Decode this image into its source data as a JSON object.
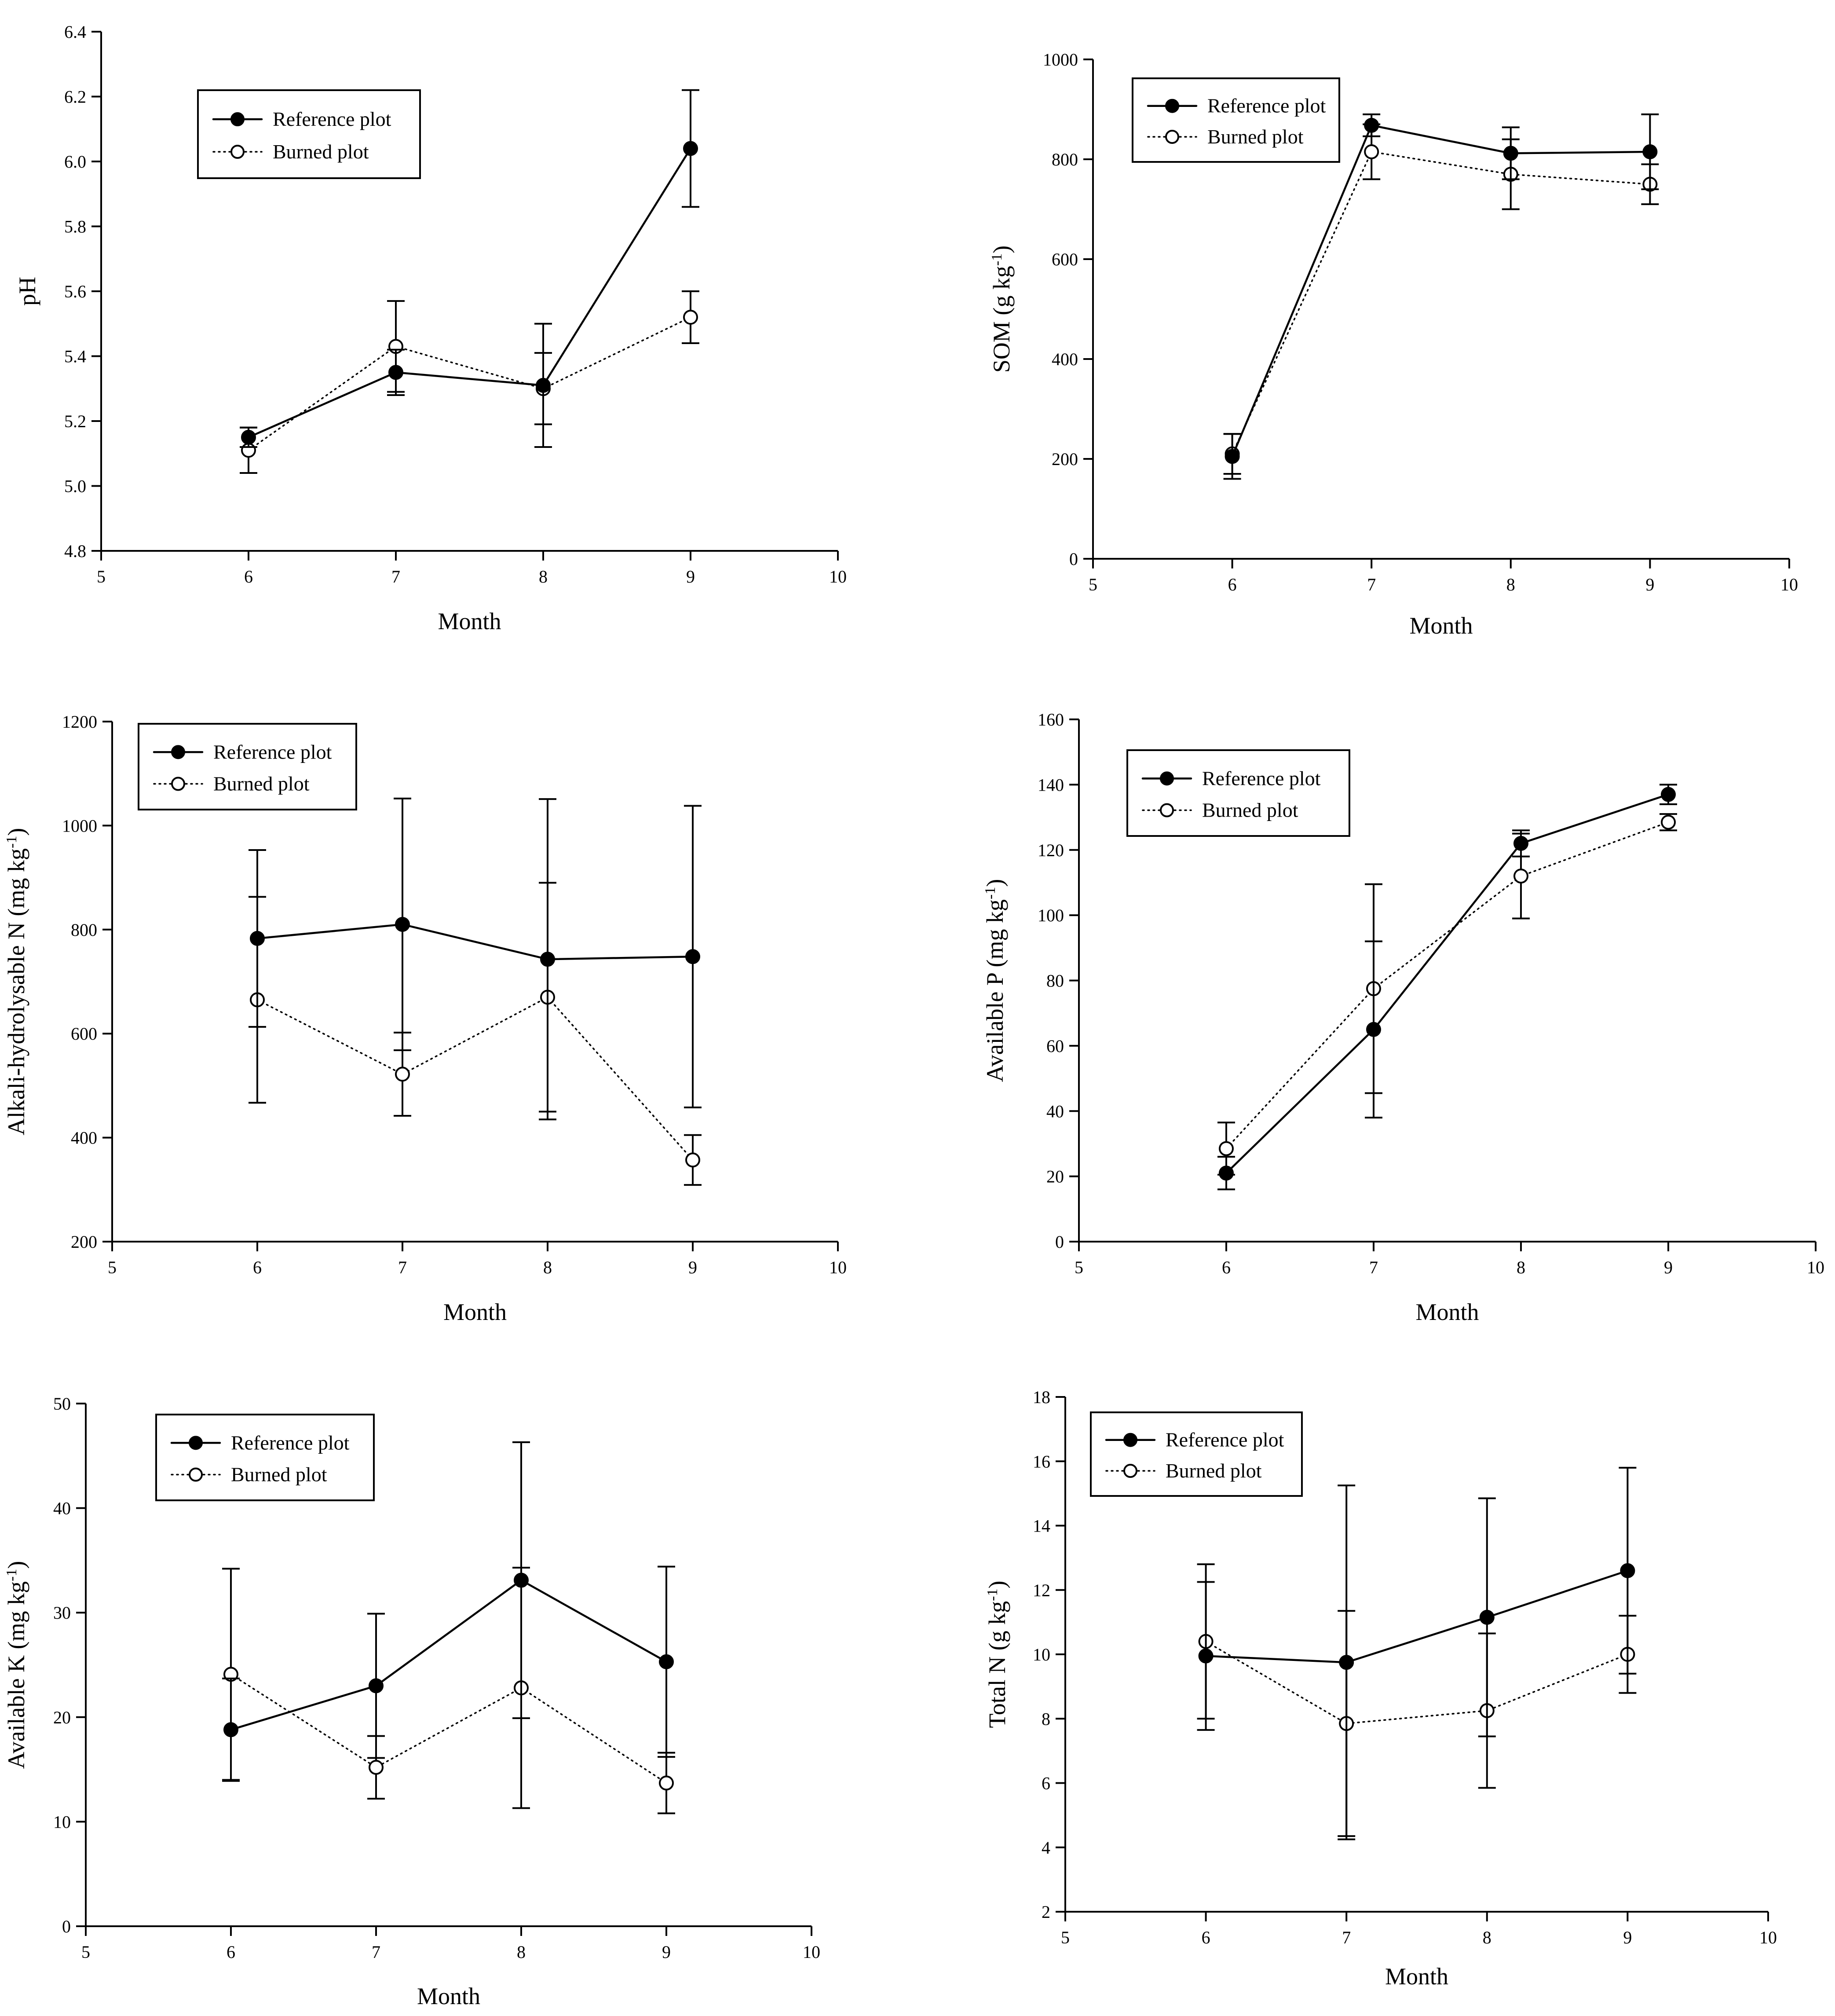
{
  "chart_data": [
    {
      "type": "line",
      "panel": "ph",
      "xlabel": "Month",
      "ylabel": "pH",
      "ylabel_sup": "",
      "ylabel_tail": "",
      "xlim": [
        5,
        10
      ],
      "ylim": [
        4.8,
        6.4
      ],
      "xticks": [
        5,
        6,
        7,
        8,
        9,
        10
      ],
      "yticks": [
        4.8,
        5.0,
        5.2,
        5.4,
        5.6,
        5.8,
        6.0,
        6.2,
        6.4
      ],
      "ydecimals": 1,
      "legend_position": "top-left",
      "x": [
        6,
        7,
        8,
        9
      ],
      "series": [
        {
          "name": "Reference plot",
          "style": "solid-filled",
          "values": [
            5.15,
            5.35,
            5.31,
            6.04
          ],
          "err": [
            0.03,
            0.07,
            0.19,
            0.18
          ]
        },
        {
          "name": "Burned plot",
          "style": "dotted-open",
          "values": [
            5.11,
            5.43,
            5.3,
            5.52
          ],
          "err": [
            0.07,
            0.14,
            0.11,
            0.08
          ]
        }
      ]
    },
    {
      "type": "line",
      "panel": "som",
      "xlabel": "Month",
      "ylabel": "SOM  (g kg",
      "ylabel_sup": "-1",
      "ylabel_tail": ")",
      "xlim": [
        5,
        10
      ],
      "ylim": [
        0,
        1000
      ],
      "xticks": [
        5,
        6,
        7,
        8,
        9,
        10
      ],
      "yticks": [
        0,
        200,
        400,
        600,
        800,
        1000
      ],
      "ydecimals": 0,
      "legend_position": "top-left",
      "x": [
        6,
        7,
        8,
        9
      ],
      "series": [
        {
          "name": "Reference plot",
          "style": "solid-filled",
          "values": [
            205,
            868,
            812,
            815
          ],
          "err": [
            45,
            22,
            52,
            75
          ]
        },
        {
          "name": "Burned plot",
          "style": "dotted-open",
          "values": [
            210,
            815,
            770,
            750
          ],
          "err": [
            40,
            55,
            70,
            40
          ]
        }
      ]
    },
    {
      "type": "line",
      "panel": "alkali-n",
      "xlabel": "Month",
      "ylabel": "Alkali-hydrolysable N (mg kg",
      "ylabel_sup": "-1",
      "ylabel_tail": ")",
      "xlim": [
        5,
        10
      ],
      "ylim": [
        200,
        1200
      ],
      "xticks": [
        5,
        6,
        7,
        8,
        9,
        10
      ],
      "yticks": [
        200,
        400,
        600,
        800,
        1000,
        1200
      ],
      "ydecimals": 0,
      "legend_position": "top-left",
      "x": [
        6,
        7,
        8,
        9
      ],
      "series": [
        {
          "name": "Reference plot",
          "style": "solid-filled",
          "values": [
            783,
            810,
            743,
            748
          ],
          "err": [
            170,
            242,
            308,
            290
          ]
        },
        {
          "name": "Burned plot",
          "style": "dotted-open",
          "values": [
            665,
            522,
            670,
            357
          ],
          "err": [
            198,
            80,
            220,
            48
          ]
        }
      ]
    },
    {
      "type": "line",
      "panel": "avail-p",
      "xlabel": "Month",
      "ylabel": "Available P (mg kg",
      "ylabel_sup": "-1",
      "ylabel_tail": ")",
      "xlim": [
        5,
        10
      ],
      "ylim": [
        0,
        160
      ],
      "xticks": [
        5,
        6,
        7,
        8,
        9,
        10
      ],
      "yticks": [
        0,
        20,
        40,
        60,
        80,
        100,
        120,
        140,
        160
      ],
      "ydecimals": 0,
      "legend_position": "top-left",
      "x": [
        6,
        7,
        8,
        9
      ],
      "series": [
        {
          "name": "Reference plot",
          "style": "solid-filled",
          "values": [
            21,
            65,
            122,
            137
          ],
          "err": [
            5,
            27,
            4,
            3
          ]
        },
        {
          "name": "Burned plot",
          "style": "dotted-open",
          "values": [
            28.5,
            77.5,
            112,
            128.5
          ],
          "err": [
            8,
            32,
            13,
            2.5
          ]
        }
      ]
    },
    {
      "type": "line",
      "panel": "avail-k",
      "xlabel": "Month",
      "ylabel": "Available K (mg kg",
      "ylabel_sup": "-1",
      "ylabel_tail": ")",
      "xlim": [
        5,
        10
      ],
      "ylim": [
        0,
        50
      ],
      "xticks": [
        5,
        6,
        7,
        8,
        9,
        10
      ],
      "yticks": [
        0,
        10,
        20,
        30,
        40,
        50
      ],
      "ydecimals": 0,
      "legend_position": "top-left",
      "x": [
        6,
        7,
        8,
        9
      ],
      "series": [
        {
          "name": "Reference plot",
          "style": "solid-filled",
          "values": [
            18.8,
            23,
            33.1,
            25.3
          ],
          "err": [
            4.9,
            6.9,
            13.2,
            9.1
          ]
        },
        {
          "name": "Burned plot",
          "style": "dotted-open",
          "values": [
            24.1,
            15.2,
            22.8,
            13.7
          ],
          "err": [
            10.1,
            3.0,
            11.5,
            2.9
          ]
        }
      ]
    },
    {
      "type": "line",
      "panel": "total-n",
      "xlabel": "Month",
      "ylabel": "Total N (g kg",
      "ylabel_sup": "-1",
      "ylabel_tail": ")",
      "xlim": [
        5,
        10
      ],
      "ylim": [
        2,
        18
      ],
      "xticks": [
        5,
        6,
        7,
        8,
        9,
        10
      ],
      "yticks": [
        2,
        4,
        6,
        8,
        10,
        12,
        14,
        16,
        18
      ],
      "ydecimals": 0,
      "legend_position": "top-left",
      "x": [
        6,
        7,
        8,
        9
      ],
      "series": [
        {
          "name": "Reference plot",
          "style": "solid-filled",
          "values": [
            9.95,
            9.75,
            11.15,
            12.6
          ],
          "err": [
            2.3,
            5.5,
            3.7,
            3.2
          ]
        },
        {
          "name": "Burned plot",
          "style": "dotted-open",
          "values": [
            10.4,
            7.85,
            8.25,
            10.0
          ],
          "err": [
            2.4,
            3.5,
            2.4,
            1.2
          ]
        }
      ]
    }
  ]
}
